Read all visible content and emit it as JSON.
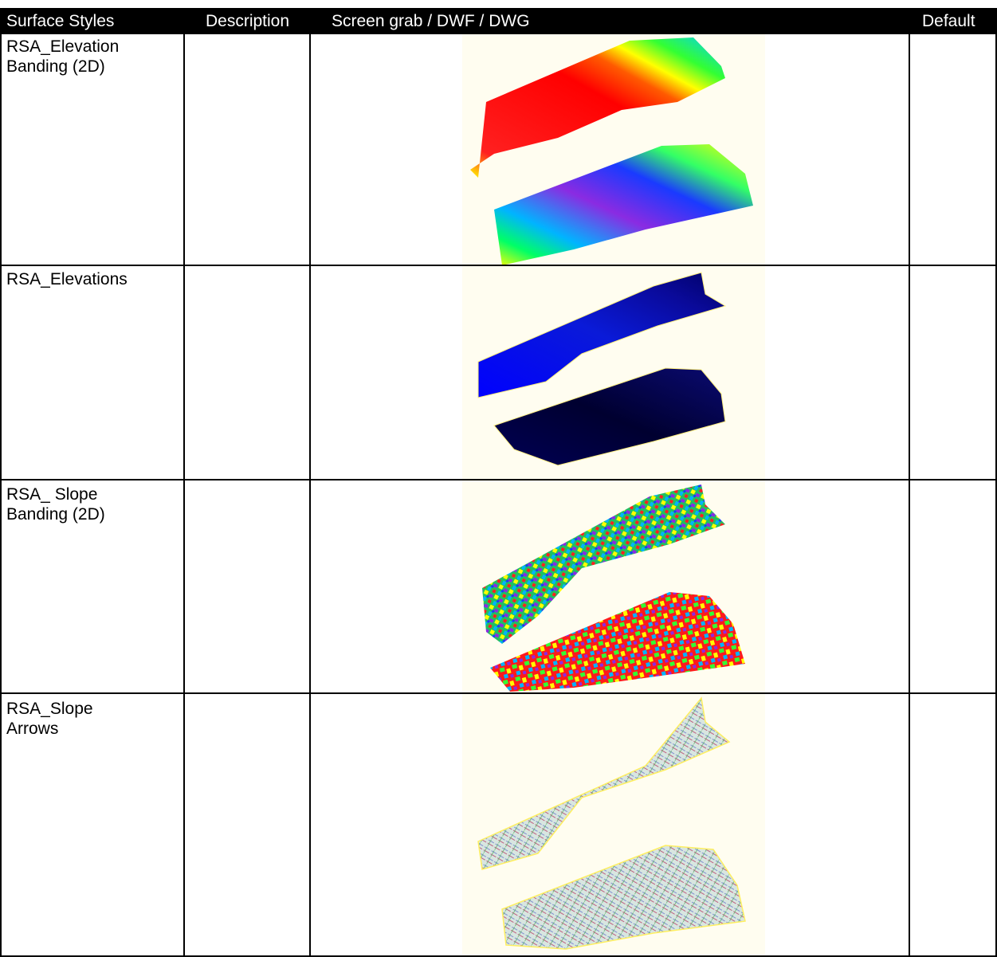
{
  "table": {
    "headers": {
      "surface_styles": "Surface Styles",
      "description": "Description",
      "screen_grab": "Screen grab / DWF / DWG",
      "default": "Default"
    },
    "rows": [
      {
        "style": "RSA_Elevation\nBanding (2D)",
        "description": "",
        "preview": "elevation-banding-preview",
        "default": ""
      },
      {
        "style": "RSA_Elevations",
        "description": "",
        "preview": "elevations-preview",
        "default": ""
      },
      {
        "style": "RSA_ Slope\nBanding (2D)",
        "description": "",
        "preview": "slope-banding-preview",
        "default": ""
      },
      {
        "style": "RSA_Slope\nArrows",
        "description": "",
        "preview": "slope-arrows-preview",
        "default": ""
      }
    ]
  },
  "colors": {
    "header_bg": "#000000",
    "header_text": "#ffffff",
    "preview_bg": "#fffdf0"
  }
}
